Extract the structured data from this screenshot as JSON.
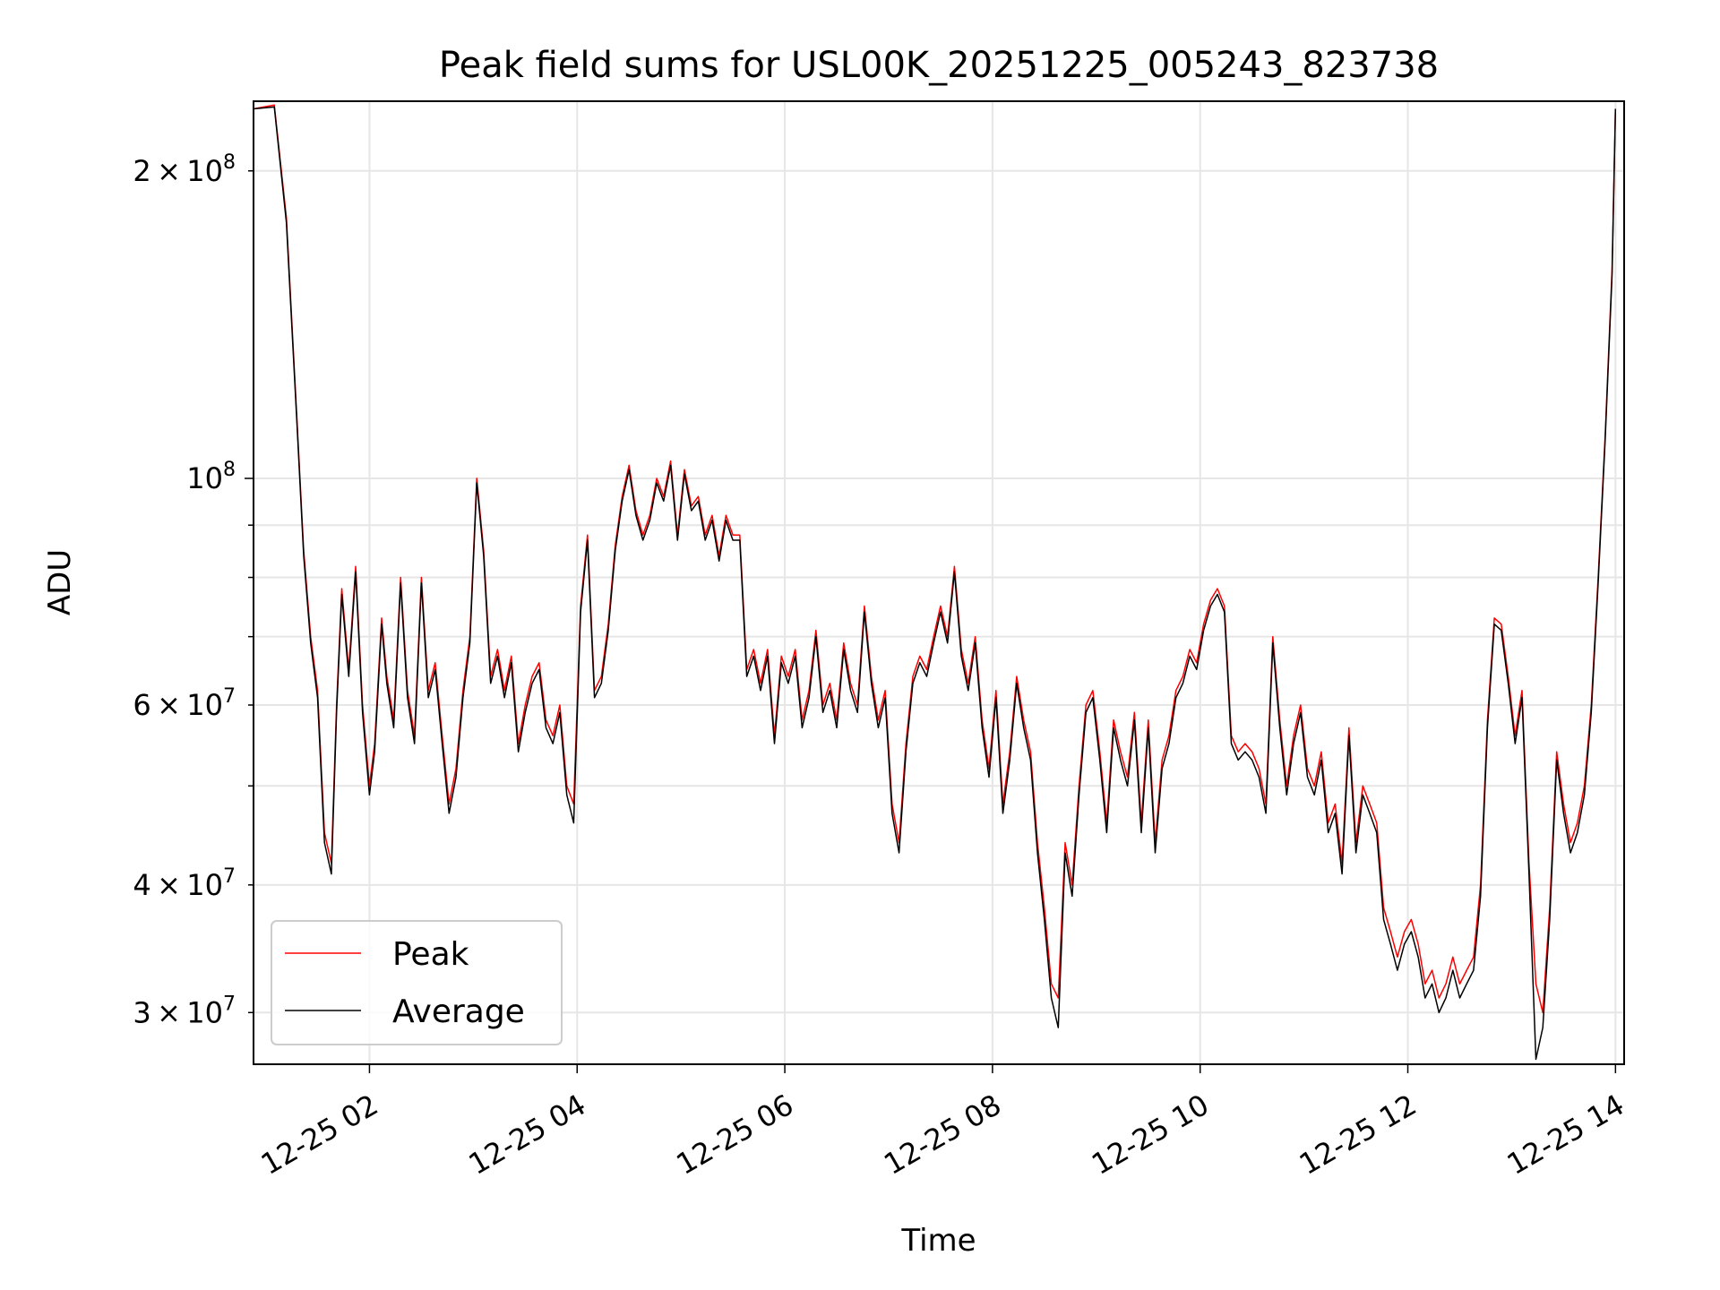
{
  "chart_data": {
    "type": "line",
    "title": "Peak field sums for USL00K_20251225_005243_823738",
    "xlabel": "Time",
    "ylabel": "ADU",
    "y_scale": "log",
    "grid": true,
    "legend_position": "lower-left",
    "xlim": [
      "2025-12-25 00:53",
      "2025-12-25 14:05"
    ],
    "ylim": [
      26700000,
      234000000
    ],
    "x_tick_labels": [
      "12-25 02",
      "12-25 04",
      "12-25 06",
      "12-25 08",
      "12-25 10",
      "12-25 12",
      "12-25 14"
    ],
    "x_ticks": [
      "2025-12-25 02:00",
      "2025-12-25 04:00",
      "2025-12-25 06:00",
      "2025-12-25 08:00",
      "2025-12-25 10:00",
      "2025-12-25 12:00",
      "2025-12-25 14:00"
    ],
    "y_major_ticks": [
      {
        "value": 100000000,
        "base": "10",
        "exp": "8"
      }
    ],
    "y_minor_ticks": [
      {
        "value": 30000000,
        "mant": "3",
        "exp": "7"
      },
      {
        "value": 40000000,
        "mant": "4",
        "exp": "7"
      },
      {
        "value": 60000000,
        "mant": "6",
        "exp": "7"
      },
      {
        "value": 200000000,
        "mant": "2",
        "exp": "8"
      }
    ],
    "y_minor_unlabeled": [
      50000000,
      70000000,
      80000000,
      90000000
    ],
    "x": [
      "00:53",
      "01:05",
      "01:12",
      "01:18",
      "01:22",
      "01:26",
      "01:30",
      "01:34",
      "01:38",
      "01:41",
      "01:44",
      "01:48",
      "01:52",
      "01:56",
      "02:00",
      "02:03",
      "02:07",
      "02:10",
      "02:14",
      "02:18",
      "02:22",
      "02:26",
      "02:30",
      "02:34",
      "02:38",
      "02:42",
      "02:46",
      "02:50",
      "02:54",
      "02:58",
      "03:02",
      "03:06",
      "03:10",
      "03:14",
      "03:18",
      "03:22",
      "03:26",
      "03:30",
      "03:34",
      "03:38",
      "03:42",
      "03:46",
      "03:50",
      "03:54",
      "03:58",
      "04:02",
      "04:06",
      "04:10",
      "04:14",
      "04:18",
      "04:22",
      "04:26",
      "04:30",
      "04:34",
      "04:38",
      "04:42",
      "04:46",
      "04:50",
      "04:54",
      "04:58",
      "05:02",
      "05:06",
      "05:10",
      "05:14",
      "05:18",
      "05:22",
      "05:26",
      "05:30",
      "05:34",
      "05:38",
      "05:42",
      "05:46",
      "05:50",
      "05:54",
      "05:58",
      "06:02",
      "06:06",
      "06:10",
      "06:14",
      "06:18",
      "06:22",
      "06:26",
      "06:30",
      "06:34",
      "06:38",
      "06:42",
      "06:46",
      "06:50",
      "06:54",
      "06:58",
      "07:02",
      "07:06",
      "07:10",
      "07:14",
      "07:18",
      "07:22",
      "07:26",
      "07:30",
      "07:34",
      "07:38",
      "07:42",
      "07:46",
      "07:50",
      "07:54",
      "07:58",
      "08:02",
      "08:06",
      "08:10",
      "08:14",
      "08:18",
      "08:22",
      "08:26",
      "08:30",
      "08:34",
      "08:38",
      "08:42",
      "08:46",
      "08:50",
      "08:54",
      "08:58",
      "09:02",
      "09:06",
      "09:10",
      "09:14",
      "09:18",
      "09:22",
      "09:26",
      "09:30",
      "09:34",
      "09:38",
      "09:42",
      "09:46",
      "09:50",
      "09:54",
      "09:58",
      "10:02",
      "10:06",
      "10:10",
      "10:14",
      "10:18",
      "10:22",
      "10:26",
      "10:30",
      "10:34",
      "10:38",
      "10:42",
      "10:46",
      "10:50",
      "10:54",
      "10:58",
      "11:02",
      "11:06",
      "11:10",
      "11:14",
      "11:18",
      "11:22",
      "11:26",
      "11:30",
      "11:34",
      "11:38",
      "11:42",
      "11:46",
      "11:50",
      "11:54",
      "11:58",
      "12:02",
      "12:06",
      "12:10",
      "12:14",
      "12:18",
      "12:22",
      "12:26",
      "12:30",
      "12:34",
      "12:38",
      "12:42",
      "12:46",
      "12:50",
      "12:54",
      "12:58",
      "13:02",
      "13:06",
      "13:10",
      "13:14",
      "13:18",
      "13:22",
      "13:26",
      "13:30",
      "13:34",
      "13:38",
      "13:42",
      "13:46",
      "13:50",
      "13:54",
      "13:58",
      "14:00"
    ],
    "series": [
      {
        "name": "Peak",
        "color": "#ff0000",
        "values": [
          230000000,
          232000000,
          180000000,
          115000000,
          85000000,
          70000000,
          62000000,
          45000000,
          42000000,
          60000000,
          78000000,
          65000000,
          82000000,
          60000000,
          50000000,
          55000000,
          73000000,
          64000000,
          58000000,
          80000000,
          62000000,
          56000000,
          80000000,
          62000000,
          66000000,
          56000000,
          48000000,
          52000000,
          62000000,
          70000000,
          100000000,
          85000000,
          64000000,
          68000000,
          62000000,
          67000000,
          55000000,
          60000000,
          64000000,
          66000000,
          58000000,
          56000000,
          60000000,
          50000000,
          48000000,
          75000000,
          88000000,
          62000000,
          64000000,
          72000000,
          86000000,
          96000000,
          103000000,
          93000000,
          88000000,
          92000000,
          100000000,
          96000000,
          104000000,
          88000000,
          102000000,
          94000000,
          96000000,
          88000000,
          92000000,
          84000000,
          92000000,
          88000000,
          88000000,
          65000000,
          68000000,
          63000000,
          68000000,
          56000000,
          67000000,
          64000000,
          68000000,
          58000000,
          62000000,
          71000000,
          60000000,
          63000000,
          58000000,
          69000000,
          63000000,
          60000000,
          75000000,
          64000000,
          58000000,
          62000000,
          48000000,
          44000000,
          55000000,
          64000000,
          67000000,
          65000000,
          70000000,
          75000000,
          70000000,
          82000000,
          68000000,
          63000000,
          70000000,
          58000000,
          52000000,
          62000000,
          48000000,
          54000000,
          64000000,
          58000000,
          54000000,
          44000000,
          38000000,
          32000000,
          31000000,
          44000000,
          40000000,
          50000000,
          60000000,
          62000000,
          54000000,
          46000000,
          58000000,
          54000000,
          51000000,
          59000000,
          46000000,
          58000000,
          44000000,
          53000000,
          56000000,
          62000000,
          64000000,
          68000000,
          66000000,
          72000000,
          76000000,
          78000000,
          75000000,
          56000000,
          54000000,
          55000000,
          54000000,
          52000000,
          48000000,
          70000000,
          58000000,
          50000000,
          56000000,
          60000000,
          52000000,
          50000000,
          54000000,
          46000000,
          48000000,
          42000000,
          57000000,
          44000000,
          50000000,
          48000000,
          46000000,
          38000000,
          36000000,
          34000000,
          36000000,
          37000000,
          35000000,
          32000000,
          33000000,
          31000000,
          32000000,
          34000000,
          32000000,
          33000000,
          34000000,
          40000000,
          58000000,
          73000000,
          72000000,
          64000000,
          56000000,
          62000000,
          42000000,
          32000000,
          30000000,
          38000000,
          54000000,
          48000000,
          44000000,
          46000000,
          50000000,
          60000000,
          80000000,
          110000000,
          160000000,
          230000000
        ]
      },
      {
        "name": "Average",
        "color": "#000000",
        "values": [
          230000000,
          231000000,
          178000000,
          114000000,
          84000000,
          69000000,
          61000000,
          44000000,
          41000000,
          59000000,
          77000000,
          64000000,
          81000000,
          59000000,
          49000000,
          54000000,
          72000000,
          63000000,
          57000000,
          79000000,
          61000000,
          55000000,
          79000000,
          61000000,
          65000000,
          55000000,
          47000000,
          51000000,
          61000000,
          69000000,
          99000000,
          84000000,
          63000000,
          67000000,
          61000000,
          66000000,
          54000000,
          59000000,
          63000000,
          65000000,
          57000000,
          55000000,
          59000000,
          49000000,
          46000000,
          74000000,
          87000000,
          61000000,
          63000000,
          71000000,
          85000000,
          95000000,
          102000000,
          92000000,
          87000000,
          91000000,
          99000000,
          95000000,
          103000000,
          87000000,
          101000000,
          93000000,
          95000000,
          87000000,
          91000000,
          83000000,
          91000000,
          87000000,
          87000000,
          64000000,
          67000000,
          62000000,
          67000000,
          55000000,
          66000000,
          63000000,
          67000000,
          57000000,
          61000000,
          70000000,
          59000000,
          62000000,
          57000000,
          68000000,
          62000000,
          59000000,
          74000000,
          63000000,
          57000000,
          61000000,
          47000000,
          43000000,
          54000000,
          63000000,
          66000000,
          64000000,
          69000000,
          74000000,
          69000000,
          81000000,
          67000000,
          62000000,
          69000000,
          57000000,
          51000000,
          61000000,
          47000000,
          53000000,
          63000000,
          57000000,
          53000000,
          43000000,
          37000000,
          31000000,
          29000000,
          43000000,
          39000000,
          49000000,
          59000000,
          61000000,
          53000000,
          45000000,
          57000000,
          53000000,
          50000000,
          58000000,
          45000000,
          57000000,
          43000000,
          52000000,
          55000000,
          61000000,
          63000000,
          67000000,
          65000000,
          71000000,
          75000000,
          77000000,
          74000000,
          55000000,
          53000000,
          54000000,
          53000000,
          51000000,
          47000000,
          69000000,
          57000000,
          49000000,
          55000000,
          59000000,
          51000000,
          49000000,
          53000000,
          45000000,
          47000000,
          41000000,
          56000000,
          43000000,
          49000000,
          47000000,
          45000000,
          37000000,
          35000000,
          33000000,
          35000000,
          36000000,
          34000000,
          31000000,
          32000000,
          30000000,
          31000000,
          33000000,
          31000000,
          32000000,
          33000000,
          39000000,
          57000000,
          72000000,
          71000000,
          63000000,
          55000000,
          61000000,
          41000000,
          27000000,
          29000000,
          37000000,
          53000000,
          47000000,
          43000000,
          45000000,
          49000000,
          59000000,
          79000000,
          109000000,
          158000000,
          230000000
        ]
      }
    ]
  }
}
